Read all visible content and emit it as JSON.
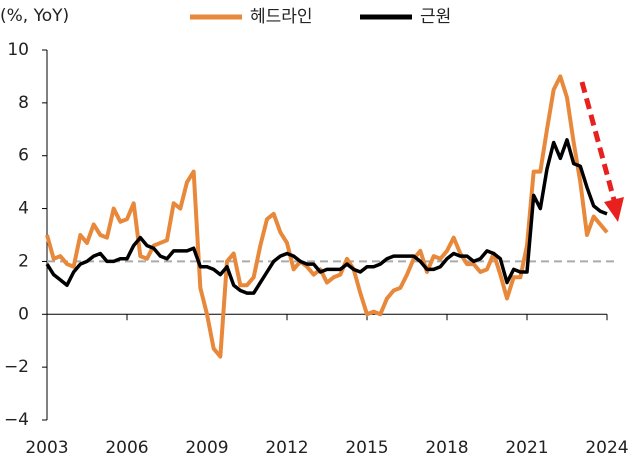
{
  "chart_data": {
    "type": "line",
    "y_label": "(%, YoY)",
    "x": [
      2003,
      2003.25,
      2003.5,
      2003.75,
      2004,
      2004.25,
      2004.5,
      2004.75,
      2005,
      2005.25,
      2005.5,
      2005.75,
      2006,
      2006.25,
      2006.5,
      2006.75,
      2007,
      2007.25,
      2007.5,
      2007.75,
      2008,
      2008.25,
      2008.5,
      2008.75,
      2009,
      2009.25,
      2009.5,
      2009.75,
      2010,
      2010.25,
      2010.5,
      2010.75,
      2011,
      2011.25,
      2011.5,
      2011.75,
      2012,
      2012.25,
      2012.5,
      2012.75,
      2013,
      2013.25,
      2013.5,
      2013.75,
      2014,
      2014.25,
      2014.5,
      2014.75,
      2015,
      2015.25,
      2015.5,
      2015.75,
      2016,
      2016.25,
      2016.5,
      2016.75,
      2017,
      2017.25,
      2017.5,
      2017.75,
      2018,
      2018.25,
      2018.5,
      2018.75,
      2019,
      2019.25,
      2019.5,
      2019.75,
      2020,
      2020.25,
      2020.5,
      2020.75,
      2021,
      2021.25,
      2021.5,
      2021.75,
      2022,
      2022.25,
      2022.5,
      2022.75,
      2023,
      2023.25,
      2023.5,
      2023.75,
      2024
    ],
    "series": [
      {
        "name": "헤드라인",
        "color": "#e8883a",
        "values": [
          3.0,
          2.1,
          2.2,
          1.9,
          1.8,
          3.0,
          2.7,
          3.4,
          3.0,
          2.9,
          4.0,
          3.5,
          3.6,
          4.2,
          2.2,
          2.1,
          2.6,
          2.7,
          2.8,
          4.2,
          4.0,
          5.0,
          5.4,
          1.0,
          0.0,
          -1.3,
          -1.6,
          2.0,
          2.3,
          1.1,
          1.1,
          1.4,
          2.6,
          3.6,
          3.8,
          3.1,
          2.7,
          1.7,
          2.0,
          1.8,
          1.5,
          1.7,
          1.2,
          1.4,
          1.5,
          2.1,
          1.7,
          0.8,
          0.0,
          0.1,
          0.0,
          0.6,
          0.9,
          1.0,
          1.5,
          2.1,
          2.4,
          1.6,
          2.2,
          2.1,
          2.4,
          2.9,
          2.3,
          1.9,
          1.9,
          1.6,
          1.7,
          2.3,
          1.5,
          0.6,
          1.4,
          1.4,
          2.6,
          5.4,
          5.4,
          7.0,
          8.5,
          9.0,
          8.2,
          6.5,
          5.0,
          3.0,
          3.7,
          3.4,
          3.1
        ]
      },
      {
        "name": "근원",
        "color": "#000000",
        "values": [
          1.9,
          1.5,
          1.3,
          1.1,
          1.6,
          1.9,
          2.0,
          2.2,
          2.3,
          2.0,
          2.0,
          2.1,
          2.1,
          2.6,
          2.9,
          2.6,
          2.5,
          2.2,
          2.1,
          2.4,
          2.4,
          2.4,
          2.5,
          1.8,
          1.8,
          1.7,
          1.5,
          1.8,
          1.1,
          0.9,
          0.8,
          0.8,
          1.2,
          1.6,
          2.0,
          2.2,
          2.3,
          2.2,
          2.0,
          1.9,
          1.9,
          1.6,
          1.7,
          1.7,
          1.7,
          1.9,
          1.7,
          1.6,
          1.8,
          1.8,
          1.9,
          2.1,
          2.2,
          2.2,
          2.2,
          2.2,
          2.0,
          1.7,
          1.7,
          1.8,
          2.1,
          2.3,
          2.2,
          2.2,
          2.0,
          2.1,
          2.4,
          2.3,
          2.1,
          1.2,
          1.7,
          1.6,
          1.6,
          4.5,
          4.0,
          5.5,
          6.5,
          5.9,
          6.6,
          5.7,
          5.6,
          4.8,
          4.1,
          3.9,
          3.8
        ]
      }
    ],
    "reference_line": 2,
    "xlim": [
      2003,
      2024
    ],
    "xticks": [
      2003,
      2006,
      2009,
      2012,
      2015,
      2018,
      2021,
      2024
    ],
    "ylim": [
      -4,
      10
    ],
    "yticks": [
      {
        "value": -4,
        "label": "−4"
      },
      {
        "value": -2,
        "label": "−2"
      },
      0,
      2,
      4,
      6,
      8,
      10
    ]
  }
}
